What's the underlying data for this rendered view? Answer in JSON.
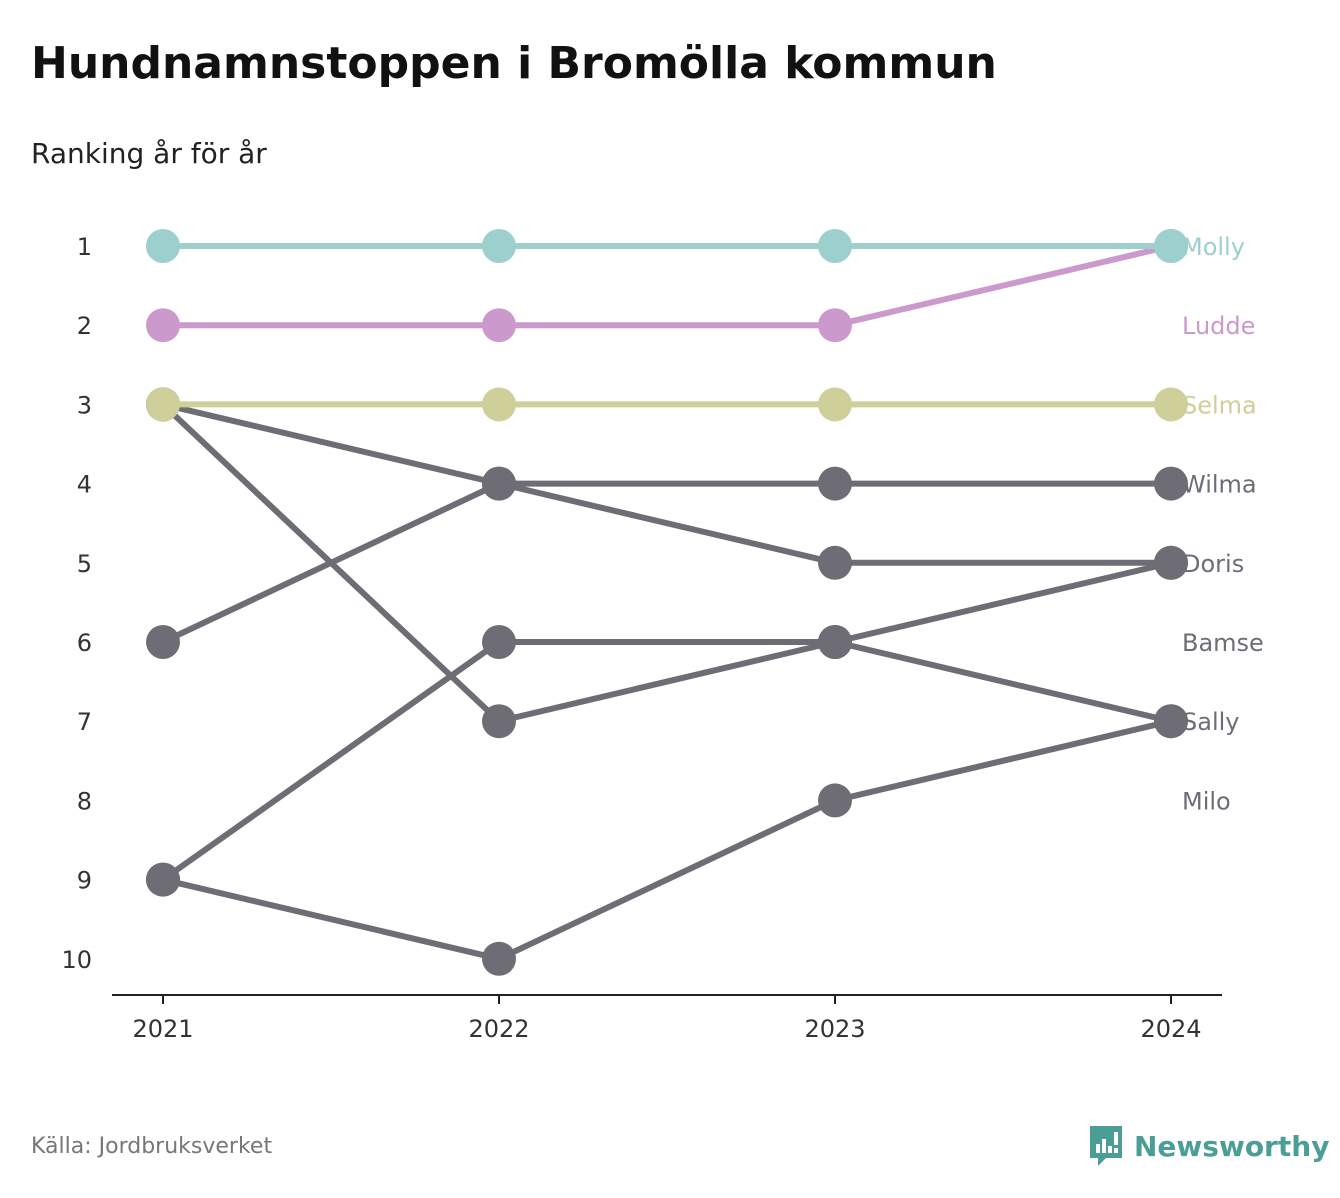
{
  "title": "Hundnamnstoppen i Bromölla kommun",
  "subtitle": "Ranking år för år",
  "source": "Källa: Jordbruksverket",
  "brand": {
    "name": "Newsworthy",
    "icon": "newsworthy-logo-icon",
    "color": "#4a9e95"
  },
  "colors": {
    "highlight_molly": "#9dd0cc",
    "highlight_ludde": "#cc99cc",
    "highlight_selma": "#cfcf9a",
    "other": "#6e6d75",
    "axis": "#222222",
    "tick_text": "#333333"
  },
  "chart_data": {
    "type": "line",
    "x": [
      "2021",
      "2022",
      "2023",
      "2024"
    ],
    "y_ticks": [
      "1",
      "2",
      "3",
      "4",
      "5",
      "6",
      "7",
      "8",
      "9",
      "10"
    ],
    "y_reversed": true,
    "ylim": [
      1,
      10
    ],
    "grid": false,
    "end_labels": [
      "Molly",
      "Ludde",
      "Selma",
      "Wilma",
      "Doris",
      "Bamse",
      "Sally",
      "Milo"
    ],
    "series": [
      {
        "name": "Molly",
        "color": "#9dd0cc",
        "values": [
          1,
          1,
          1,
          1
        ]
      },
      {
        "name": "Ludde",
        "color": "#cc99cc",
        "values": [
          2,
          2,
          2,
          1
        ]
      },
      {
        "name": "Selma",
        "color": "#cfcf9a",
        "values": [
          3,
          3,
          3,
          3
        ]
      },
      {
        "name": "Wilma",
        "color": "#6e6d75",
        "values": [
          6,
          4,
          4,
          4
        ]
      },
      {
        "name": "Doris",
        "color": "#6e6d75",
        "values": [
          3,
          4,
          5,
          5
        ]
      },
      {
        "name": "Bamse",
        "color": "#6e6d75",
        "values": [
          9,
          6,
          6,
          7
        ]
      },
      {
        "name": "Sally",
        "color": "#6e6d75",
        "values": [
          3,
          7,
          6,
          5
        ]
      },
      {
        "name": "Milo",
        "color": "#6e6d75",
        "values": [
          9,
          10,
          8,
          7
        ]
      }
    ]
  }
}
